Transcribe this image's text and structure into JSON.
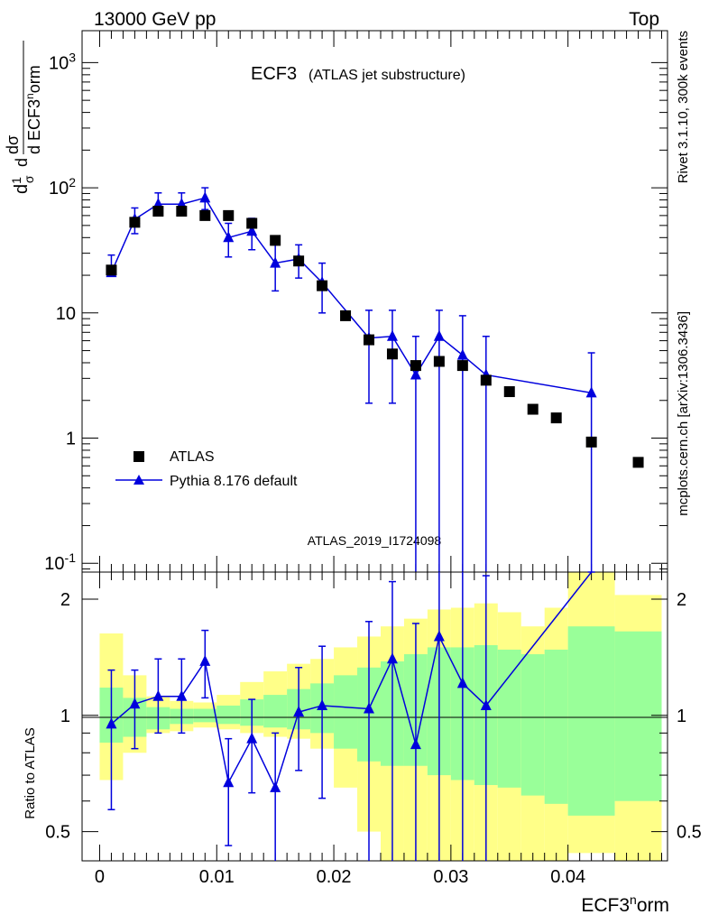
{
  "header": {
    "left": "13000 GeV pp",
    "right": "Top"
  },
  "side_labels": {
    "top": "Rivet 3.1.10,  300k events",
    "bottom": "mcplots.cern.ch [arXiv:1306.3436]"
  },
  "watermark": "ATLAS_2019_I1724098",
  "chart_data": [
    {
      "type": "scatter",
      "title": "ECF3",
      "subtitle": "(ATLAS jet substructure)",
      "ylabel": "1/σ dσ/d ECF3^norm",
      "yscale": "log",
      "ylim": [
        0.085,
        1800
      ],
      "xlim": [
        -0.0015,
        0.0485
      ],
      "ytick_labels": [
        "10^-1",
        "1",
        "10",
        "10^2",
        "10^3"
      ],
      "legend": [
        "ATLAS",
        "Pythia 8.176 default"
      ],
      "series": [
        {
          "name": "ATLAS",
          "marker": "square",
          "color": "#000000",
          "x": [
            0.001,
            0.003,
            0.005,
            0.007,
            0.009,
            0.011,
            0.013,
            0.015,
            0.017,
            0.019,
            0.021,
            0.023,
            0.025,
            0.027,
            0.029,
            0.031,
            0.033,
            0.035,
            0.037,
            0.039,
            0.042,
            0.046
          ],
          "y": [
            22,
            53,
            65,
            65,
            60,
            60,
            52,
            38,
            26,
            16.5,
            9.5,
            6.1,
            4.7,
            3.8,
            4.1,
            3.8,
            2.9,
            2.35,
            1.7,
            1.45,
            0.93,
            0.64
          ]
        },
        {
          "name": "Pythia 8.176 default",
          "marker": "triangle",
          "color": "#0000dd",
          "x": [
            0.001,
            0.003,
            0.005,
            0.007,
            0.009,
            0.011,
            0.013,
            0.015,
            0.017,
            0.019,
            0.023,
            0.025,
            0.027,
            0.029,
            0.031,
            0.033,
            0.042
          ],
          "y": [
            21,
            56,
            74,
            74,
            83,
            40,
            45,
            25,
            27,
            17.5,
            6.3,
            6.5,
            3.2,
            6.5,
            4.6,
            3.2,
            2.3
          ],
          "err_low": [
            21,
            43,
            60,
            61,
            67,
            28,
            32,
            15,
            19,
            10,
            1.9,
            1.9,
            0.085,
            0.085,
            0.085,
            0.085,
            0.085
          ],
          "err_high": [
            29,
            69,
            91,
            91,
            100,
            52,
            57,
            35,
            35,
            25,
            10.5,
            10.5,
            6.5,
            10.5,
            9.5,
            6.5,
            4.8
          ]
        }
      ]
    },
    {
      "type": "line",
      "ylabel": "Ratio to ATLAS",
      "xlabel": "ECF3^norm",
      "yscale": "log",
      "ylim": [
        0.42,
        2.35
      ],
      "xlim": [
        -0.0015,
        0.0485
      ],
      "xtick_labels": [
        "0",
        "0.01",
        "0.02",
        "0.03",
        "0.04"
      ],
      "ytick_labels": [
        "0.5",
        "1",
        "2"
      ],
      "reference": 1,
      "bands": {
        "edges": [
          0,
          0.002,
          0.004,
          0.006,
          0.008,
          0.01,
          0.012,
          0.014,
          0.016,
          0.018,
          0.02,
          0.022,
          0.024,
          0.026,
          0.028,
          0.03,
          0.032,
          0.034,
          0.036,
          0.038,
          0.04,
          0.044,
          0.048
        ],
        "outer_low": [
          0.68,
          0.8,
          0.9,
          0.91,
          0.93,
          0.92,
          0.9,
          0.88,
          0.87,
          0.82,
          0.65,
          0.5,
          0.36,
          0.3,
          0.3,
          0.28,
          0.28,
          0.28,
          0.3,
          0.32,
          0.44,
          0.42
        ],
        "outer_high": [
          1.63,
          1.27,
          1.12,
          1.09,
          1.08,
          1.13,
          1.22,
          1.3,
          1.36,
          1.4,
          1.5,
          1.6,
          1.7,
          1.78,
          1.88,
          1.9,
          1.95,
          1.85,
          1.7,
          1.9,
          2.5,
          2.05
        ],
        "inner_low": [
          0.85,
          0.88,
          0.92,
          0.95,
          0.96,
          0.95,
          0.94,
          0.93,
          0.92,
          0.9,
          0.82,
          0.76,
          0.74,
          0.74,
          0.7,
          0.68,
          0.66,
          0.65,
          0.62,
          0.59,
          0.55,
          0.6
        ],
        "inner_high": [
          1.18,
          1.11,
          1.05,
          1.04,
          1.04,
          1.06,
          1.1,
          1.13,
          1.17,
          1.21,
          1.27,
          1.33,
          1.38,
          1.44,
          1.5,
          1.5,
          1.52,
          1.48,
          1.44,
          1.48,
          1.7,
          1.65
        ],
        "outer_color": "#ffff88",
        "inner_color": "#99ff99"
      },
      "series": [
        {
          "name": "Pythia 8.176 default / ATLAS",
          "color": "#0000dd",
          "x": [
            0.001,
            0.003,
            0.005,
            0.007,
            0.009,
            0.011,
            0.013,
            0.015,
            0.017,
            0.019,
            0.023,
            0.025,
            0.027,
            0.029,
            0.031,
            0.033,
            0.042
          ],
          "y": [
            0.95,
            1.07,
            1.12,
            1.12,
            1.38,
            0.67,
            0.87,
            0.65,
            1.02,
            1.06,
            1.04,
            1.4,
            0.84,
            1.6,
            1.21,
            1.06,
            2.45
          ],
          "err_low": [
            0.57,
            0.82,
            0.9,
            0.9,
            1.11,
            0.46,
            0.63,
            0.4,
            0.72,
            0.61,
            0.32,
            0.3,
            0.3,
            0.3,
            0.3,
            0.3,
            2.45
          ],
          "err_high": [
            1.31,
            1.31,
            1.4,
            1.4,
            1.66,
            0.87,
            1.1,
            0.9,
            1.33,
            1.51,
            1.75,
            2.22,
            1.73,
            2.5,
            2.55,
            2.3,
            2.45
          ]
        }
      ]
    }
  ]
}
